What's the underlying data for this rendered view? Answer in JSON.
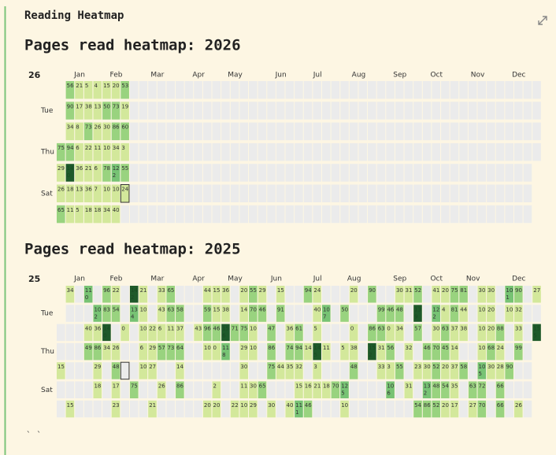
{
  "header": {
    "title": "Reading Heatmap"
  },
  "months": [
    "Jan",
    "Feb",
    "Mar",
    "Apr",
    "May",
    "Jun",
    "Jul",
    "Aug",
    "Sep",
    "Oct",
    "Nov",
    "Dec"
  ],
  "weekday_labels": [
    null,
    "Tue",
    null,
    "Thu",
    null,
    "Sat",
    null
  ],
  "palette": {
    "empty": "#ebebeb",
    "levels": [
      "#d3e89b",
      "#99d37f",
      "#77c374",
      "#1e5a2a"
    ]
  },
  "heatmaps": [
    {
      "title": "Pages read heatmap: 2026",
      "year": 2026,
      "year_label": "26",
      "days": [
        75,
        29,
        26,
        65,
        56,
        90,
        34,
        94,
        140,
        18,
        11,
        21,
        17,
        8,
        6,
        36,
        13,
        5,
        5,
        38,
        73,
        22,
        21,
        36,
        18,
        4,
        13,
        26,
        11,
        6,
        7,
        18,
        15,
        50,
        30,
        10,
        78,
        10,
        34,
        20,
        73,
        86,
        34,
        122,
        10,
        40,
        53,
        19,
        60,
        3,
        55,
        24
      ]
    },
    {
      "title": "Pages read heatmap: 2025",
      "year": 2025,
      "year_label": "25",
      "days": [
        null,
        null,
        15,
        null,
        null,
        34,
        null,
        null,
        null,
        null,
        null,
        15,
        null,
        null,
        null,
        null,
        null,
        null,
        null,
        110,
        null,
        40,
        49,
        null,
        null,
        null,
        null,
        102,
        36,
        86,
        29,
        18,
        null,
        96,
        83,
        140,
        34,
        null,
        null,
        null,
        22,
        54,
        null,
        26,
        48,
        17,
        23,
        null,
        null,
        0,
        null,
        null,
        null,
        null,
        142,
        134,
        null,
        null,
        null,
        75,
        null,
        21,
        10,
        10,
        6,
        10,
        null,
        null,
        null,
        null,
        22,
        29,
        27,
        null,
        21,
        33,
        43,
        6,
        57,
        null,
        26,
        null,
        65,
        63,
        11,
        73,
        null,
        null,
        null,
        null,
        58,
        37,
        64,
        14,
        86,
        null,
        null,
        null,
        null,
        null,
        null,
        null,
        null,
        null,
        null,
        43,
        null,
        null,
        null,
        null,
        44,
        59,
        96,
        10,
        null,
        null,
        20,
        15,
        15,
        46,
        0,
        null,
        2,
        20,
        36,
        38,
        156,
        118,
        null,
        null,
        null,
        null,
        null,
        71,
        null,
        null,
        null,
        22,
        20,
        14,
        75,
        29,
        30,
        11,
        10,
        55,
        70,
        10,
        10,
        null,
        30,
        29,
        29,
        46,
        null,
        null,
        null,
        65,
        null,
        null,
        null,
        47,
        86,
        75,
        null,
        30,
        15,
        91,
        null,
        null,
        44,
        null,
        null,
        null,
        null,
        36,
        74,
        35,
        null,
        40,
        null,
        null,
        61,
        94,
        32,
        15,
        111,
        94,
        null,
        null,
        14,
        null,
        16,
        46,
        24,
        40,
        5,
        145,
        3,
        21,
        null,
        null,
        107,
        null,
        11,
        null,
        18,
        null,
        null,
        null,
        null,
        null,
        null,
        70,
        null,
        null,
        50,
        null,
        5,
        null,
        125,
        10,
        20,
        null,
        0,
        38,
        48,
        null,
        null,
        null,
        null,
        null,
        null,
        null,
        null,
        null,
        90,
        null,
        86,
        152,
        null,
        null,
        null,
        null,
        99,
        63,
        31,
        33,
        null,
        null,
        null,
        46,
        0,
        56,
        3,
        106,
        null,
        30,
        48,
        34,
        null,
        55,
        null,
        null,
        31,
        null,
        null,
        32,
        null,
        31,
        null,
        52,
        139,
        57,
        null,
        23,
        null,
        54,
        null,
        null,
        null,
        46,
        30,
        132,
        86,
        41,
        122,
        30,
        70,
        52,
        48,
        52,
        20,
        4,
        63,
        45,
        20,
        54,
        20,
        75,
        81,
        37,
        14,
        37,
        35,
        17,
        81,
        44,
        38,
        null,
        58,
        null,
        null,
        null,
        null,
        null,
        null,
        null,
        63,
        27,
        30,
        10,
        10,
        10,
        105,
        72,
        70,
        30,
        20,
        20,
        68,
        30,
        null,
        null,
        null,
        null,
        88,
        24,
        28,
        66,
        66,
        101,
        10,
        null,
        null,
        90,
        null,
        null,
        90,
        32,
        33,
        99,
        null,
        null,
        26,
        null,
        null,
        null,
        null,
        null,
        null,
        null,
        27,
        null,
        155
      ]
    }
  ],
  "footer": "` `"
}
